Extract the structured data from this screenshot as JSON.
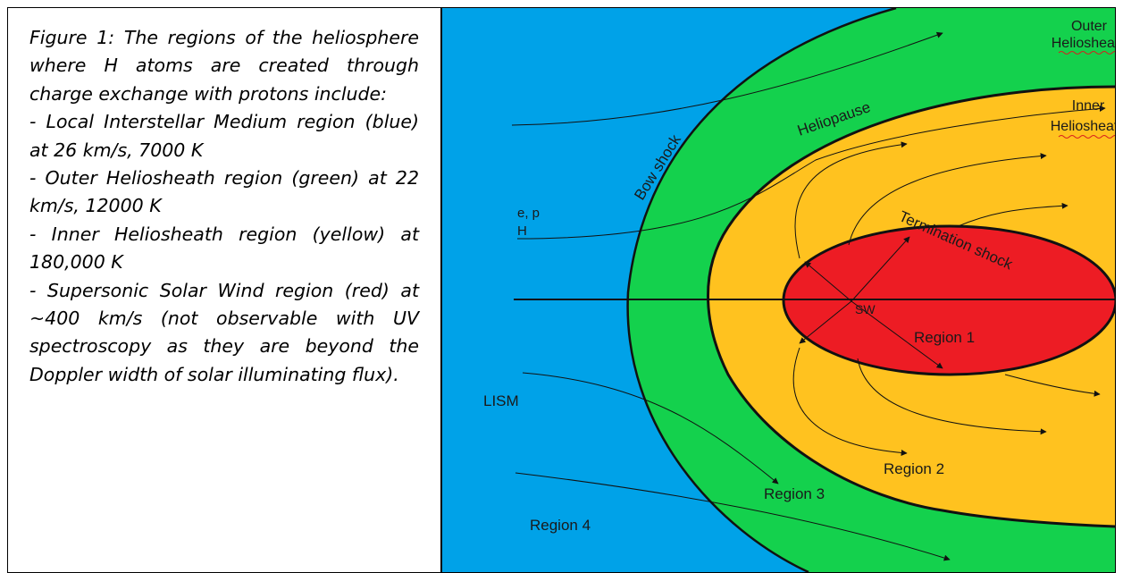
{
  "caption": {
    "title": "Figure 1: The regions of the heliosphere where H atoms are created through charge exchange with protons include:",
    "items": [
      "- Local Interstellar Medium region (blue) at 26 km/s, 7000 K",
      "- Outer Heliosheath region (green) at 22 km/s, 12000 K",
      "- Inner Heliosheath region (yellow) at 180,000 K",
      "- Supersonic Solar Wind region (red) at ~400 km/s (not observable with UV spectroscopy as they are beyond the Doppler width of solar illuminating flux)."
    ]
  },
  "diagram": {
    "labels": {
      "outer_line1": "Outer",
      "outer_line2": "Heliosheath",
      "inner_line1": "Inner",
      "inner_line2": "Heliosheath",
      "heliopause": "Heliopause",
      "bow_shock": "Bow shock",
      "termination_shock": "Termination shock",
      "ep": "e, p",
      "h": "H",
      "sw": "SW",
      "lism": "LISM",
      "region1": "Region 1",
      "region2": "Region 2",
      "region3": "Region 3",
      "region4": "Region 4"
    },
    "colors": {
      "lism": "#00a2e8",
      "outer_heliosheath": "#14d14d",
      "inner_heliosheath": "#ffc21f",
      "solar_wind": "#ed1c24"
    }
  }
}
